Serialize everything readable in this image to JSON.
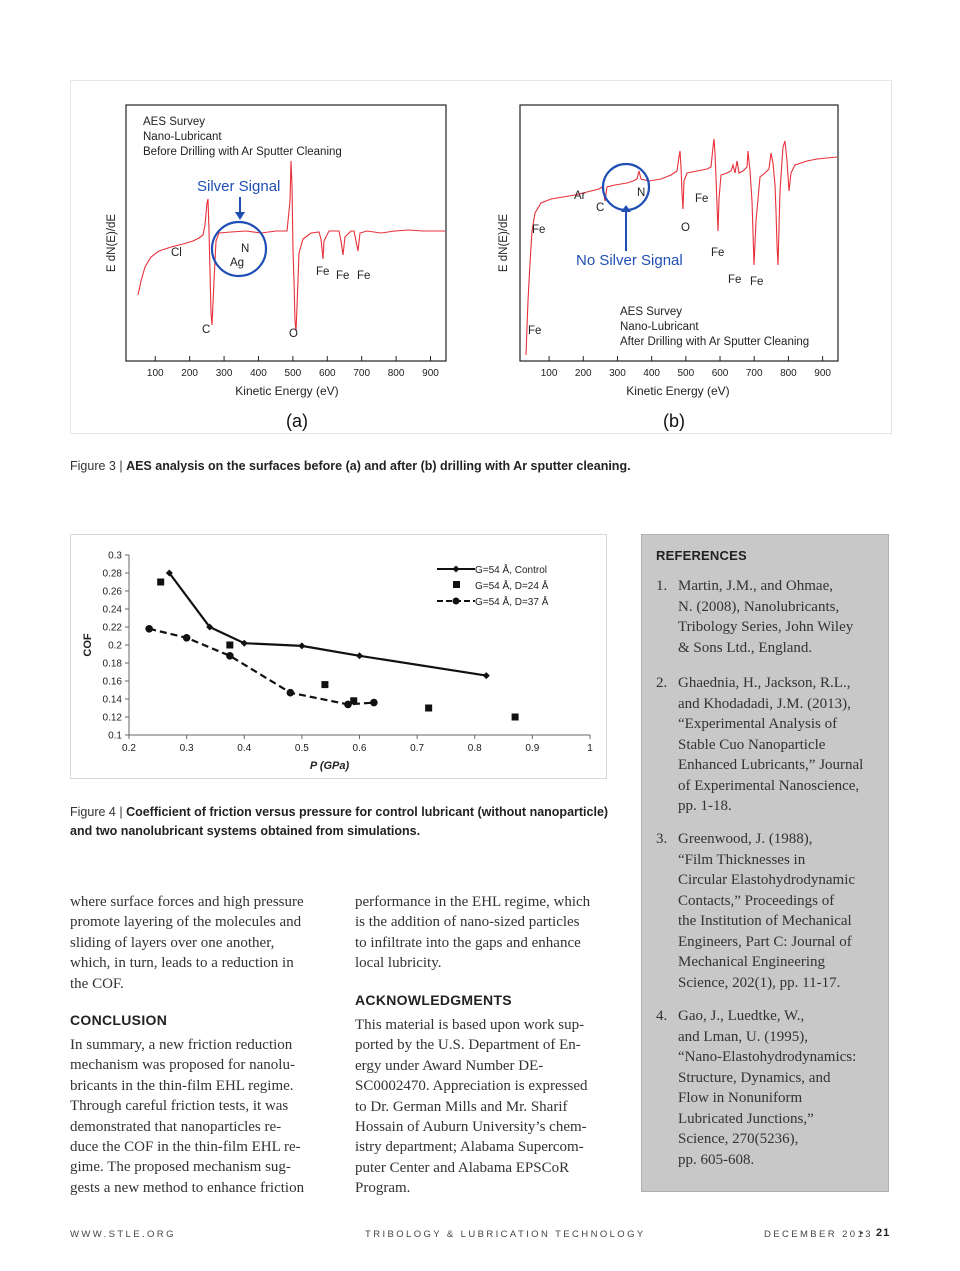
{
  "figure3": {
    "panel_a": {
      "label": "(a)",
      "title_lines": [
        "AES Survey",
        "Nano-Lubricant",
        "Before Drilling with Ar Sputter Cleaning"
      ],
      "ylabel": "E dN(E)/dE",
      "xlabel": "Kinetic Energy (eV)",
      "xticks": [
        "100",
        "200",
        "300",
        "400",
        "500",
        "600",
        "700",
        "800",
        "900"
      ],
      "annotation": "Silver Signal",
      "peaks": [
        "Cl",
        "C",
        "N",
        "Ag",
        "O",
        "Fe",
        "Fe",
        "Fe"
      ]
    },
    "panel_b": {
      "label": "(b)",
      "title_lines": [
        "AES Survey",
        "Nano-Lubricant",
        "After Drilling with Ar Sputter Cleaning"
      ],
      "ylabel": "E dN(E)/dE",
      "xlabel": "Kinetic Energy (eV)",
      "xticks": [
        "100",
        "200",
        "300",
        "400",
        "500",
        "600",
        "700",
        "800",
        "900"
      ],
      "annotation": "No Silver Signal",
      "peaks": [
        "Fe",
        "Fe",
        "Ar",
        "C",
        "N",
        "O",
        "Fe",
        "Fe",
        "Fe",
        "Fe"
      ]
    },
    "caption_lead": "Figure 3 | ",
    "caption_text": "AES analysis on the surfaces before (a) and after (b) drilling with Ar sputter cleaning."
  },
  "chart_data": {
    "type": "line",
    "xlabel": "P (GPa)",
    "ylabel": "COF",
    "xlim": [
      0.2,
      1
    ],
    "ylim": [
      0.1,
      0.3
    ],
    "xticks": [
      "0.2",
      "0.3",
      "0.4",
      "0.5",
      "0.6",
      "0.7",
      "0.8",
      "0.9",
      "1"
    ],
    "yticks": [
      "0.1",
      "0.12",
      "0.14",
      "0.16",
      "0.18",
      "0.2",
      "0.22",
      "0.24",
      "0.26",
      "0.28",
      "0.3"
    ],
    "legend_position": "top-right",
    "series": [
      {
        "name": "G=54 Å, Control",
        "style": "solid-diamond",
        "x": [
          0.27,
          0.34,
          0.4,
          0.5,
          0.6,
          0.82
        ],
        "y": [
          0.28,
          0.22,
          0.202,
          0.199,
          0.188,
          0.166
        ]
      },
      {
        "name": "G=54 Å, D=24 Å",
        "style": "square-markers",
        "x": [
          0.255,
          0.375,
          0.54,
          0.59,
          0.72,
          0.87
        ],
        "y": [
          0.27,
          0.2,
          0.156,
          0.138,
          0.13,
          0.12
        ]
      },
      {
        "name": "G=54 Å, D=37 Å",
        "style": "dashed-circle",
        "x": [
          0.235,
          0.3,
          0.375,
          0.48,
          0.58,
          0.625
        ],
        "y": [
          0.218,
          0.208,
          0.188,
          0.147,
          0.134,
          0.136
        ]
      }
    ]
  },
  "figure4": {
    "caption_lead": "Figure 4 | ",
    "caption_line1": "Coefficient of friction versus pressure for control lubricant (without nanoparticle)",
    "caption_line2": "and two nanolubricant systems obtained from simulations."
  },
  "column1": {
    "lines": [
      "where surface forces and high pressure",
      "promote layering of the molecules and",
      "sliding of layers over one another,",
      "which, in turn, leads to a reduction in",
      "the COF."
    ],
    "conclusion_heading": "CONCLUSION",
    "conclusion_lines": [
      "In summary, a new friction reduction",
      "mechanism was proposed for nanolu-",
      "bricants in the thin-film EHL regime.",
      "Through careful friction tests, it was",
      "demonstrated that nanoparticles re-",
      "duce the COF in the thin-film EHL re-",
      "gime. The proposed mechanism sug-",
      "gests a new method to enhance friction"
    ]
  },
  "column2": {
    "lines": [
      "performance in the EHL regime, which",
      "is the addition of nano-sized particles",
      "to infiltrate into the gaps and enhance",
      "local lubricity."
    ],
    "ack_heading": "ACKNOWLEDGMENTS",
    "ack_lines": [
      "This material is based upon work sup-",
      "ported by the U.S. Department of En-",
      "ergy under Award Number DE-",
      "SC0002470. Appreciation is expressed",
      "to Dr. German Mills and Mr. Sharif",
      "Hossain of Auburn University’s chem-",
      "istry department; Alabama Supercom-",
      "puter Center and Alabama EPSCoR",
      "Program."
    ]
  },
  "references": {
    "heading": "REFERENCES",
    "items": [
      {
        "num": "1.",
        "lines": [
          "Martin, J.M., and Ohmae,",
          "N. (2008), Nanolubricants,",
          "Tribology Series, John Wiley",
          "& Sons Ltd., England."
        ]
      },
      {
        "num": "2.",
        "lines": [
          "Ghaednia, H., Jackson, R.L.,",
          "and Khodadadi, J.M. (2013),",
          "“Experimental Analysis of",
          "Stable Cuo Nanoparticle",
          "Enhanced Lubricants,” Journal",
          "of Experimental Nanoscience,",
          "pp. 1-18."
        ]
      },
      {
        "num": "3.",
        "lines": [
          "Greenwood, J. (1988),",
          "“Film Thicknesses in",
          "Circular Elastohydrodynamic",
          "Contacts,” Proceedings of",
          "the Institution of Mechanical",
          "Engineers, Part C: Journal of",
          "Mechanical Engineering",
          "Science, 202(1), pp. 11-17."
        ]
      },
      {
        "num": "4.",
        "lines": [
          "Gao, J., Luedtke, W.,",
          "and Lman, U. (1995),",
          "“Nano-Elastohydrodynamics:",
          "Structure, Dynamics, and",
          "Flow in Nonuniform",
          "Lubricated Junctions,”",
          "Science, 270(5236),",
          "pp. 605-608."
        ]
      }
    ]
  },
  "footer": {
    "left": "WWW.STLE.ORG",
    "center": "TRIBOLOGY & LUBRICATION TECHNOLOGY",
    "right": "DECEMBER 2013",
    "separator": "•",
    "page": "21"
  },
  "colors": {
    "spectrum": "#e8303a",
    "annotation": "#1f4fb4",
    "ref_panel": "#c8c8c8"
  }
}
